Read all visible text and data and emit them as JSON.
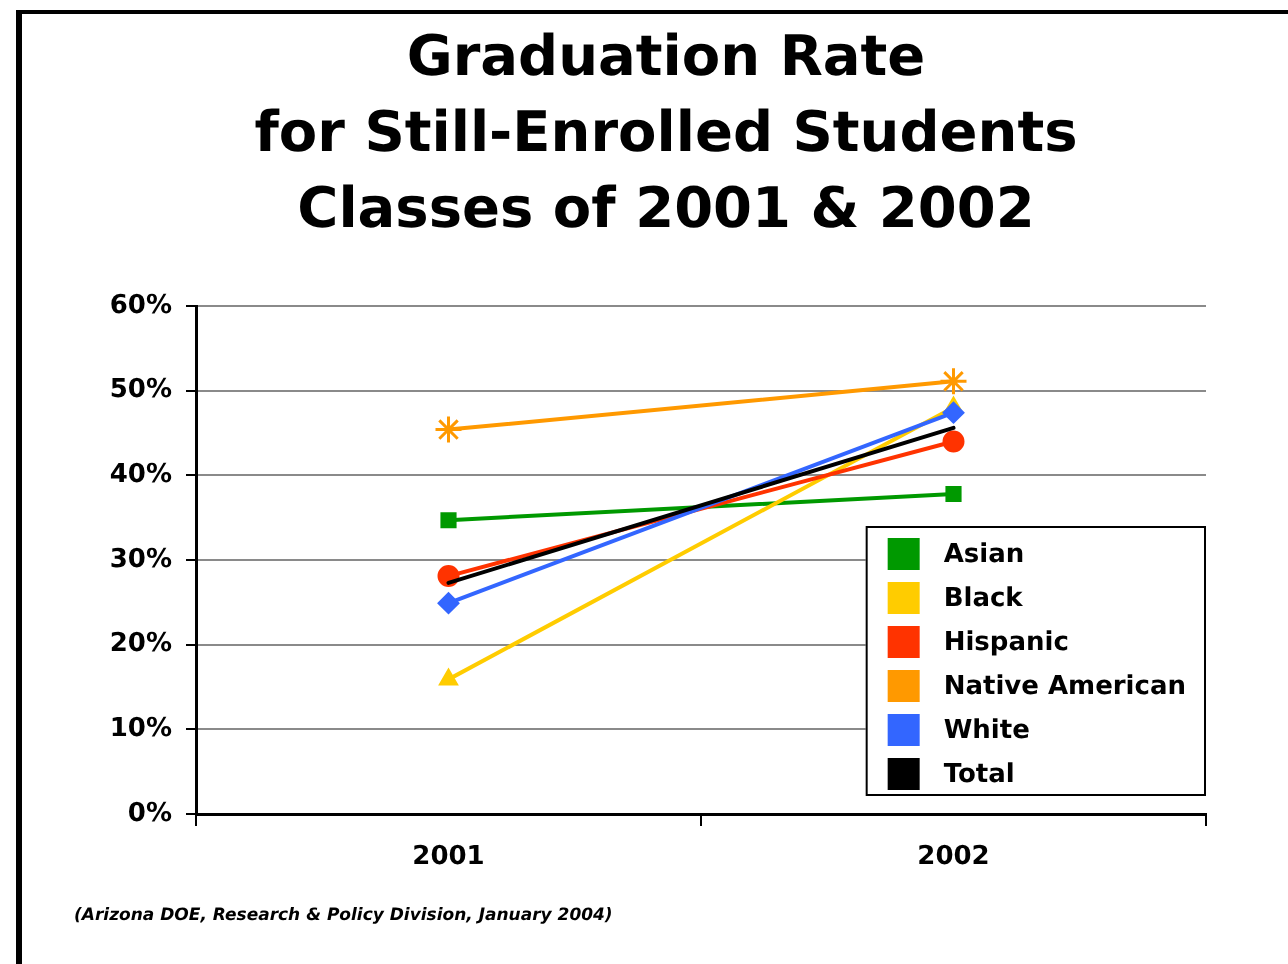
{
  "chart_data": {
    "type": "line",
    "title": "Graduation Rate\nfor Still-Enrolled Students\nClasses of 2001 & 2002",
    "categories": [
      "2001",
      "2002"
    ],
    "series": [
      {
        "name": "Asian",
        "color": "#009900",
        "values": [
          34.7,
          37.8
        ],
        "marker": "square"
      },
      {
        "name": "Black",
        "color": "#ffcc00",
        "values": [
          15.9,
          48.0
        ],
        "marker": "triangle"
      },
      {
        "name": "Hispanic",
        "color": "#ff3300",
        "values": [
          28.1,
          44.0
        ],
        "marker": "circle"
      },
      {
        "name": "Native American",
        "color": "#ff9900",
        "values": [
          45.4,
          51.1
        ],
        "marker": "cross"
      },
      {
        "name": "White",
        "color": "#3366ff",
        "values": [
          24.9,
          47.4
        ],
        "marker": "diamond"
      },
      {
        "name": "Total",
        "color": "#000000",
        "values": [
          27.3,
          45.6
        ],
        "marker": "none"
      }
    ],
    "ylim": [
      0,
      60
    ],
    "yticks": [
      {
        "value": 0,
        "label": "0%"
      },
      {
        "value": 10,
        "label": "10%"
      },
      {
        "value": 20,
        "label": "20%"
      },
      {
        "value": 30,
        "label": "30%"
      },
      {
        "value": 40,
        "label": "40%"
      },
      {
        "value": 50,
        "label": "50%"
      },
      {
        "value": 60,
        "label": "60%"
      }
    ],
    "grid": "y",
    "legend": "bottom right",
    "line_style": "solid",
    "annotations": [
      "(Arizona DOE, Research & Policy Division, January 2004)"
    ]
  }
}
